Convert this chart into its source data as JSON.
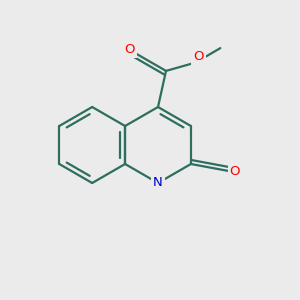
{
  "bg_color": "#ebebeb",
  "bond_color": "#2d6e5e",
  "bond_lw": 1.6,
  "atom_colors": {
    "O": "#ff0000",
    "N": "#0000cc"
  },
  "font_size": 9.5
}
